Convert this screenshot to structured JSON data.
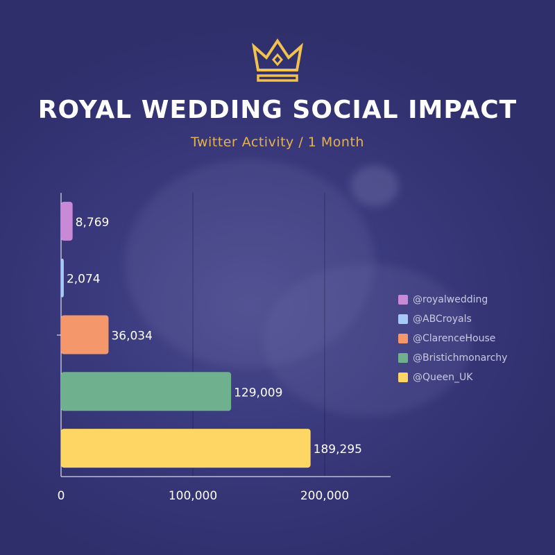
{
  "header": {
    "title": "ROYAL WEDDING SOCIAL IMPACT",
    "subtitle": "Twitter Activity / 1 Month",
    "icon": "crown-icon"
  },
  "colors": {
    "background": "#35357a",
    "title": "#ffffff",
    "subtitle": "#e6b24e",
    "crown": "#f2c14e",
    "axis": "#ffffff",
    "label_text": "#ffffff"
  },
  "chart_data": {
    "type": "bar",
    "orientation": "horizontal",
    "categories": [
      "@royalwedding",
      "@ABCroyals",
      "@ClarenceHouse",
      "@Bristichmonarchy",
      "@Queen_UK"
    ],
    "values": [
      8769,
      2074,
      36034,
      129009,
      189295
    ],
    "value_labels": [
      "8,769",
      "2,074",
      "36,034",
      "129,009",
      "189,295"
    ],
    "colors": [
      "#c88ad6",
      "#a8c8f8",
      "#f4976a",
      "#6fb08e",
      "#fdd663"
    ],
    "xlim": [
      0,
      250000
    ],
    "xticks": [
      0,
      100000,
      200000
    ],
    "xtick_labels": [
      "0",
      "100,000",
      "200,000"
    ],
    "grid": true,
    "legend": "right",
    "legend_entries": [
      "@royalwedding",
      "@ABCroyals",
      "@ClarenceHouse",
      "@Bristichmonarchy",
      "@Queen_UK"
    ]
  }
}
